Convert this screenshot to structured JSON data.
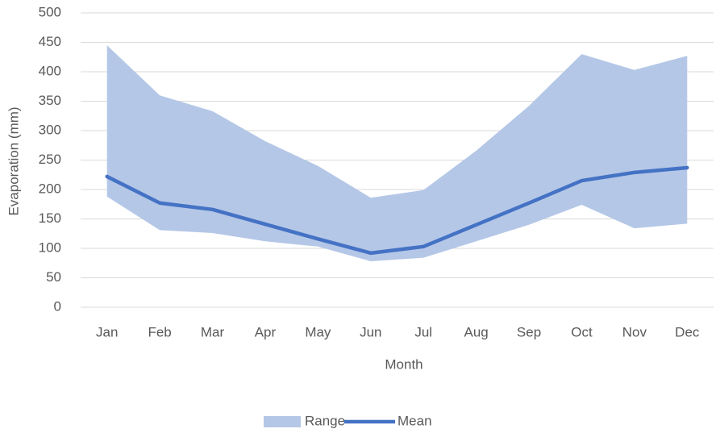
{
  "chart_data": {
    "type": "area",
    "x_label": "Month",
    "y_label": "Evaporation (mm)",
    "categories": [
      "Jan",
      "Feb",
      "Mar",
      "Apr",
      "May",
      "Jun",
      "Jul",
      "Aug",
      "Sep",
      "Oct",
      "Nov",
      "Dec"
    ],
    "series": [
      {
        "name": "Range",
        "kind": "range",
        "color": "#b4c7e7",
        "low": [
          188,
          131,
          126,
          112,
          103,
          78,
          84,
          112,
          140,
          174,
          134,
          142
        ],
        "high": [
          445,
          360,
          333,
          282,
          240,
          186,
          199,
          266,
          342,
          430,
          403,
          427
        ]
      },
      {
        "name": "Mean",
        "kind": "line",
        "color": "#4472c4",
        "values": [
          222,
          177,
          166,
          141,
          116,
          92,
          103,
          140,
          177,
          215,
          229,
          237
        ]
      }
    ],
    "ylim": [
      0,
      500
    ],
    "yticks": [
      0,
      50,
      100,
      150,
      200,
      250,
      300,
      350,
      400,
      450,
      500
    ],
    "grid": true,
    "legend": "bottom"
  }
}
